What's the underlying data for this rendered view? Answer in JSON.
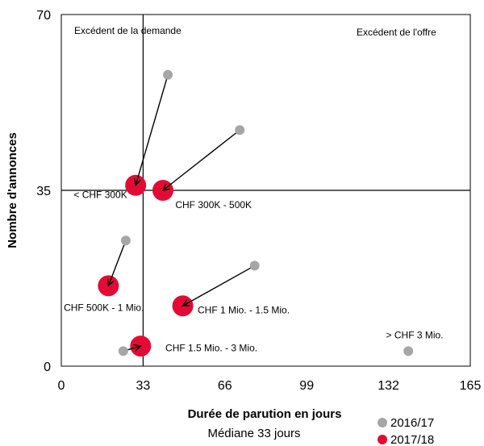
{
  "chart_data": {
    "type": "scatter",
    "xlabel": "Durée de parution en jours",
    "xlabel_sub": "Médiane 33 jours",
    "ylabel": "Nombre d'annonces",
    "xlim": [
      0,
      165
    ],
    "ylim": [
      0,
      70
    ],
    "x_ticks": [
      "0",
      "33",
      "66",
      "99",
      "132",
      "165"
    ],
    "y_ticks": [
      "0",
      "35",
      "70"
    ],
    "median_x": 33,
    "median_y": 35,
    "quadrant_labels": [
      "Excédent de la demande",
      "Excédent de l'offre"
    ],
    "series": [
      {
        "name": "2016/17",
        "color": "#a6a6a6",
        "points": [
          {
            "label": "< CHF 300K",
            "x": 43,
            "y": 58
          },
          {
            "label": "CHF 300K - 500K",
            "x": 72,
            "y": 47
          },
          {
            "label": "CHF 500K - 1 Mio.",
            "x": 26,
            "y": 25
          },
          {
            "label": "CHF 1 Mio. - 1.5 Mio.",
            "x": 78,
            "y": 20
          },
          {
            "label": "CHF 1.5 Mio. - 3 Mio.",
            "x": 25,
            "y": 3
          },
          {
            "label": "> CHF 3 Mio.",
            "x": 140,
            "y": 3
          }
        ]
      },
      {
        "name": "2017/18",
        "color": "#e30b35",
        "points": [
          {
            "label": "< CHF 300K",
            "x": 30,
            "y": 36
          },
          {
            "label": "CHF 300K - 500K",
            "x": 41,
            "y": 35
          },
          {
            "label": "CHF 500K - 1 Mio.",
            "x": 19,
            "y": 16
          },
          {
            "label": "CHF 1 Mio. - 1.5 Mio.",
            "x": 49,
            "y": 12
          },
          {
            "label": "CHF 1.5 Mio. - 3 Mio.",
            "x": 32,
            "y": 4
          }
        ]
      }
    ],
    "point_labels": [
      {
        "text": "< CHF 300K",
        "x": 5,
        "y": 33.5
      },
      {
        "text": "CHF 300K - 500K",
        "x": 46,
        "y": 31.5
      },
      {
        "text": "CHF 500K - 1 Mio.",
        "x": 1,
        "y": 11
      },
      {
        "text": "CHF 1 Mio. - 1.5 Mio.",
        "x": 55,
        "y": 10.5
      },
      {
        "text": "CHF 1.5 Mio. - 3 Mio.",
        "x": 42,
        "y": 3
      },
      {
        "text": "> CHF 3 Mio.",
        "x": 131,
        "y": 5.5
      }
    ],
    "legend": [
      "2016/17",
      "2017/18"
    ],
    "legend_position": "bottom-right"
  }
}
